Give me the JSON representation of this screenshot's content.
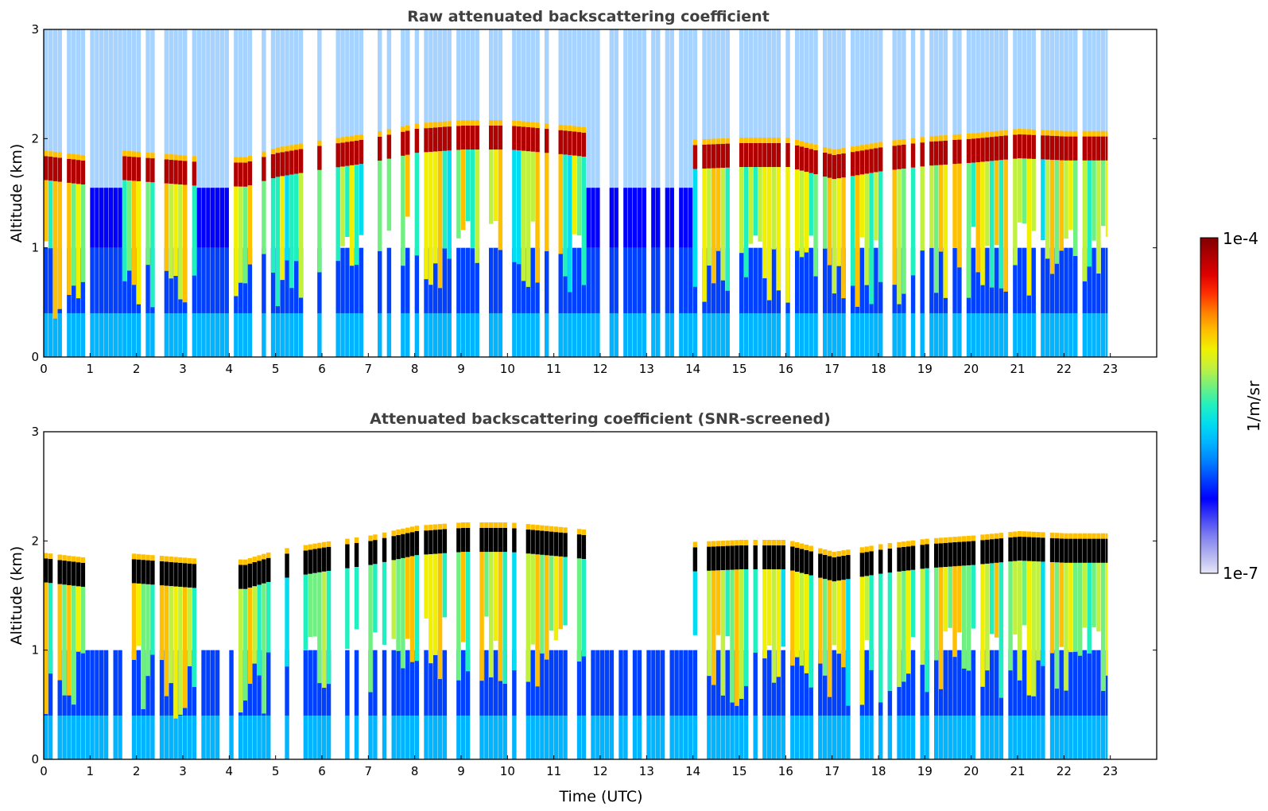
{
  "chart_data": [
    {
      "type": "heatmap",
      "title": "Raw attenuated backscattering coefficient",
      "xlabel": "",
      "ylabel": "Altitude (km)",
      "xlim": [
        0,
        24
      ],
      "ylim": [
        0,
        3
      ],
      "xticks": [
        "0",
        "1",
        "2",
        "3",
        "4",
        "5",
        "6",
        "7",
        "8",
        "9",
        "10",
        "11",
        "12",
        "13",
        "14",
        "15",
        "16",
        "17",
        "18",
        "19",
        "20",
        "21",
        "22",
        "23"
      ],
      "yticks": [
        "0",
        "1",
        "2",
        "3"
      ],
      "screened": false,
      "cloud_base_km": [
        {
          "t": 0.0,
          "z": 1.62
        },
        {
          "t": 0.8,
          "z": 1.58
        },
        {
          "t": 1.7,
          "z": 1.62
        },
        {
          "t": 3.2,
          "z": 1.57
        },
        {
          "t": 4.3,
          "z": 1.56
        },
        {
          "t": 5.0,
          "z": 1.65
        },
        {
          "t": 6.0,
          "z": 1.72
        },
        {
          "t": 7.0,
          "z": 1.78
        },
        {
          "t": 8.0,
          "z": 1.87
        },
        {
          "t": 9.0,
          "z": 1.9
        },
        {
          "t": 10.0,
          "z": 1.9
        },
        {
          "t": 11.3,
          "z": 1.85
        },
        {
          "t": 13.9,
          "z": 1.72
        },
        {
          "t": 15.0,
          "z": 1.74
        },
        {
          "t": 16.0,
          "z": 1.74
        },
        {
          "t": 17.0,
          "z": 1.63
        },
        {
          "t": 18.0,
          "z": 1.7
        },
        {
          "t": 19.0,
          "z": 1.75
        },
        {
          "t": 20.0,
          "z": 1.78
        },
        {
          "t": 21.0,
          "z": 1.82
        },
        {
          "t": 22.0,
          "z": 1.8
        }
      ],
      "data_end_hour": 22.95
    },
    {
      "type": "heatmap",
      "title": "Attenuated backscattering coefficient (SNR-screened)",
      "xlabel": "Time (UTC)",
      "ylabel": "Altitude (km)",
      "xlim": [
        0,
        24
      ],
      "ylim": [
        0,
        3
      ],
      "xticks": [
        "0",
        "1",
        "2",
        "3",
        "4",
        "5",
        "6",
        "7",
        "8",
        "9",
        "10",
        "11",
        "12",
        "13",
        "14",
        "15",
        "16",
        "17",
        "18",
        "19",
        "20",
        "21",
        "22",
        "23"
      ],
      "yticks": [
        "0",
        "1",
        "2",
        "3"
      ],
      "screened": true,
      "cloud_base_km": [
        {
          "t": 0.0,
          "z": 1.62
        },
        {
          "t": 0.8,
          "z": 1.58
        },
        {
          "t": 1.7,
          "z": 1.62
        },
        {
          "t": 3.2,
          "z": 1.57
        },
        {
          "t": 4.3,
          "z": 1.56
        },
        {
          "t": 5.0,
          "z": 1.65
        },
        {
          "t": 6.0,
          "z": 1.72
        },
        {
          "t": 7.0,
          "z": 1.78
        },
        {
          "t": 8.0,
          "z": 1.87
        },
        {
          "t": 9.0,
          "z": 1.9
        },
        {
          "t": 10.0,
          "z": 1.9
        },
        {
          "t": 11.3,
          "z": 1.85
        },
        {
          "t": 13.9,
          "z": 1.72
        },
        {
          "t": 15.0,
          "z": 1.74
        },
        {
          "t": 16.0,
          "z": 1.74
        },
        {
          "t": 17.0,
          "z": 1.63
        },
        {
          "t": 18.0,
          "z": 1.7
        },
        {
          "t": 19.0,
          "z": 1.75
        },
        {
          "t": 20.0,
          "z": 1.78
        },
        {
          "t": 21.0,
          "z": 1.82
        },
        {
          "t": 22.0,
          "z": 1.8
        }
      ],
      "data_end_hour": 22.95
    }
  ],
  "colorbar": {
    "label": "1/m/sr",
    "min_label": "1e-7",
    "max_label": "1e-4",
    "colors": [
      "#e6e6f7",
      "#b3b3f0",
      "#7f7ff0",
      "#4040f5",
      "#0000ff",
      "#0040ff",
      "#0080ff",
      "#00b4ff",
      "#00dcf0",
      "#20f0c0",
      "#70f080",
      "#c0f040",
      "#f0f000",
      "#ffc000",
      "#ff8000",
      "#ff3000",
      "#e00000",
      "#b00000",
      "#800000"
    ]
  }
}
